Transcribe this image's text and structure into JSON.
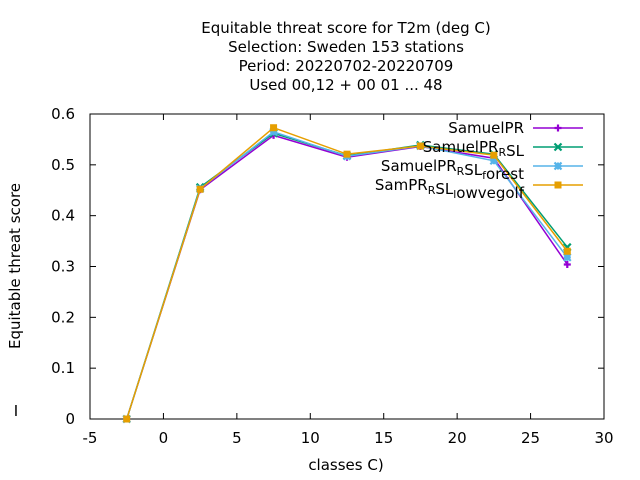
{
  "chart_data": {
    "type": "line",
    "title": [
      "Equitable threat score  for T2m (deg C)",
      "Selection: Sweden    153 stations",
      "Period: 20220702-20220709",
      "Used  00,12  + 00 01 ... 48"
    ],
    "xlabel": "classes C)",
    "ylabel": "Equitable threat score",
    "xlim": [
      -5,
      30
    ],
    "ylim": [
      0,
      0.6
    ],
    "xticks": [
      -5,
      0,
      5,
      10,
      15,
      20,
      25,
      30
    ],
    "yticks": [
      0,
      0.1,
      0.2,
      0.3,
      0.4,
      0.5,
      0.6
    ],
    "grid": false,
    "legend_position": "top-right",
    "x": [
      -2.5,
      2.5,
      7.5,
      12.5,
      17.5,
      22.5,
      27.5
    ],
    "series": [
      {
        "name": "SamuelPR",
        "legend_parts": [
          [
            "SamuelPR",
            ""
          ]
        ],
        "color": "#9400d3",
        "marker": "plus",
        "values": [
          0.0,
          0.451,
          0.558,
          0.515,
          0.536,
          0.513,
          0.304
        ]
      },
      {
        "name": "SamuelPR_RSL",
        "legend_parts": [
          [
            "SamuelPR",
            ""
          ],
          [
            "R",
            "sub"
          ],
          [
            "SL",
            ""
          ]
        ],
        "color": "#009e73",
        "marker": "x",
        "values": [
          0.0,
          0.456,
          0.562,
          0.518,
          0.539,
          0.521,
          0.338
        ]
      },
      {
        "name": "SamuelPR_RSL_forest",
        "legend_parts": [
          [
            "SamuelPR",
            ""
          ],
          [
            "R",
            "sub"
          ],
          [
            "SL",
            ""
          ],
          [
            "f",
            "sub"
          ],
          [
            "orest",
            ""
          ]
        ],
        "color": "#56b4e9",
        "marker": "star",
        "values": [
          0.0,
          0.453,
          0.565,
          0.517,
          0.537,
          0.508,
          0.318
        ]
      },
      {
        "name": "SamPR_RSL_lowvegolf",
        "legend_parts": [
          [
            "SamPR",
            ""
          ],
          [
            "R",
            "sub"
          ],
          [
            "SL",
            ""
          ],
          [
            "l",
            "sub"
          ],
          [
            "owvegolf",
            ""
          ]
        ],
        "color": "#e69f00",
        "marker": "box",
        "values": [
          0.0,
          0.452,
          0.573,
          0.521,
          0.537,
          0.519,
          0.33
        ]
      }
    ]
  },
  "stray_mark": "I"
}
